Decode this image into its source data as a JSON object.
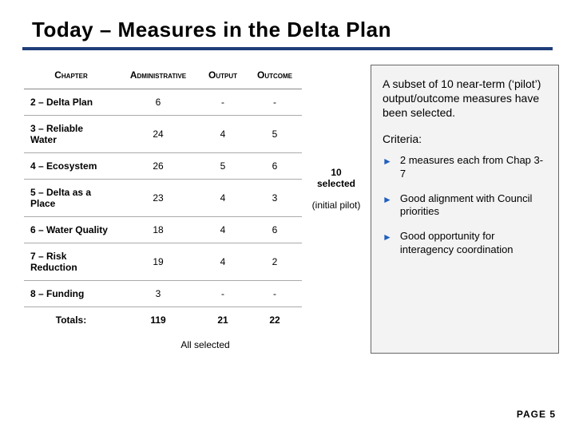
{
  "title": "Today – Measures in the Delta Plan",
  "colors": {
    "rule": "#1f3e7a",
    "arrow": "#1f5fbf",
    "sidebox_bg": "#f3f3f3",
    "sidebox_border": "#666666"
  },
  "table": {
    "columns": [
      "Chapter",
      "Administrative",
      "Output",
      "Outcome"
    ],
    "rows": [
      {
        "chapter": "2 – Delta Plan",
        "admin": "6",
        "output": "-",
        "outcome": "-"
      },
      {
        "chapter": "3 – Reliable Water",
        "admin": "24",
        "output": "4",
        "outcome": "5"
      },
      {
        "chapter": "4 – Ecosystem",
        "admin": "26",
        "output": "5",
        "outcome": "6"
      },
      {
        "chapter": "5 – Delta as a Place",
        "admin": "23",
        "output": "4",
        "outcome": "3"
      },
      {
        "chapter": "6 – Water Quality",
        "admin": "18",
        "output": "4",
        "outcome": "6"
      },
      {
        "chapter": "7 – Risk Reduction",
        "admin": "19",
        "output": "4",
        "outcome": "2"
      },
      {
        "chapter": "8 – Funding",
        "admin": "3",
        "output": "-",
        "outcome": "-"
      }
    ],
    "totals": {
      "label": "Totals:",
      "admin": "119",
      "output": "21",
      "outcome": "22"
    },
    "all_selected_note": "All selected"
  },
  "mid": {
    "selected_count": "10",
    "selected_label": "selected",
    "pilot_note": "(initial pilot)"
  },
  "side": {
    "intro": "A subset of 10 near-term (‘pilot’) output/outcome measures have been selected.",
    "criteria_label": "Criteria:",
    "criteria": [
      "2 measures each from Chap 3-7",
      "Good alignment with Council priorities",
      "Good opportunity for interagency coordination"
    ]
  },
  "page_label": "PAGE  5"
}
